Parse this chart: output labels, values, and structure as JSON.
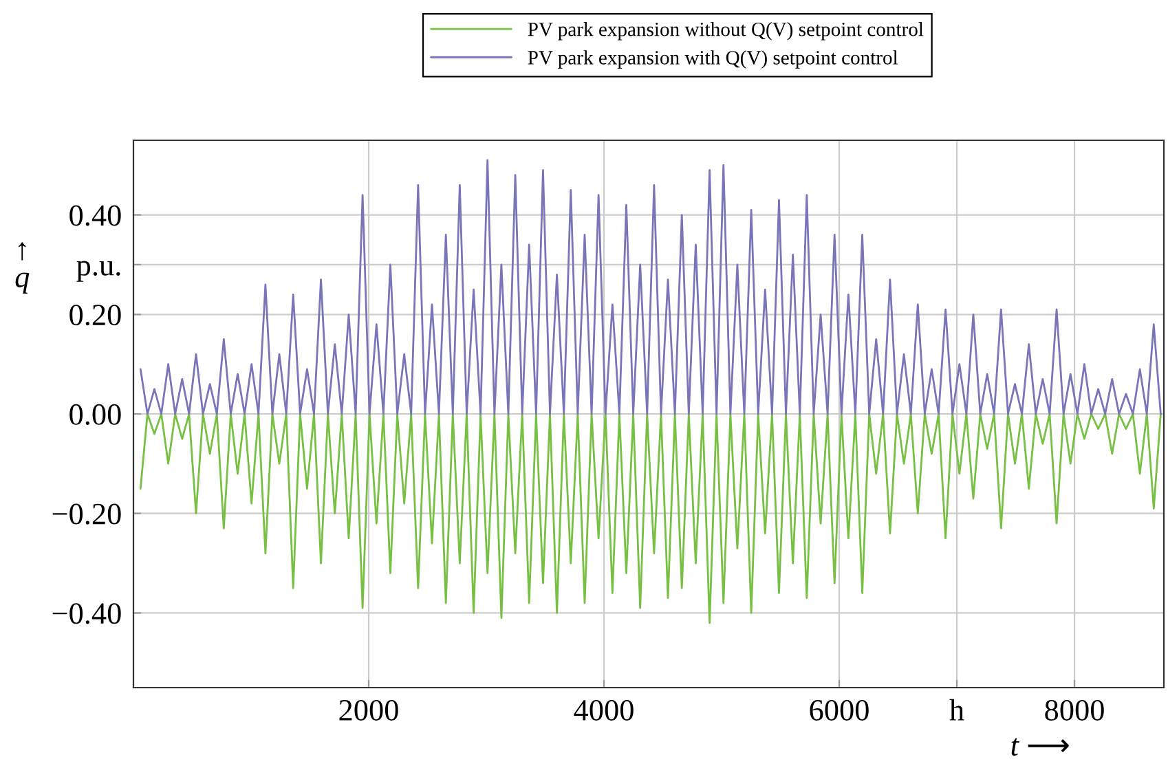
{
  "chart_data": {
    "type": "line",
    "xlabel": "t ⟶",
    "ylabel": "↑\nq",
    "x": [
      60,
      119,
      178,
      237,
      296,
      355,
      414,
      473,
      532,
      591,
      650,
      709,
      768,
      827,
      886,
      945,
      1004,
      1063,
      1122,
      1181,
      1240,
      1299,
      1358,
      1417,
      1476,
      1535,
      1594,
      1653,
      1712,
      1771,
      1830,
      1889,
      1948,
      2007,
      2066,
      2125,
      2184,
      2243,
      2302,
      2361,
      2420,
      2479,
      2538,
      2597,
      2656,
      2715,
      2774,
      2833,
      2892,
      2951,
      3010,
      3069,
      3128,
      3187,
      3246,
      3305,
      3364,
      3423,
      3482,
      3541,
      3600,
      3659,
      3718,
      3777,
      3836,
      3895,
      3954,
      4013,
      4072,
      4131,
      4190,
      4249,
      4308,
      4367,
      4426,
      4485,
      4544,
      4603,
      4662,
      4721,
      4780,
      4839,
      4898,
      4957,
      5016,
      5075,
      5134,
      5193,
      5252,
      5311,
      5370,
      5429,
      5488,
      5547,
      5606,
      5665,
      5724,
      5783,
      5842,
      5901,
      5960,
      6019,
      6078,
      6137,
      6196,
      6255,
      6314,
      6373,
      6432,
      6491,
      6550,
      6609,
      6668,
      6727,
      6786,
      6845,
      6904,
      6963,
      7022,
      7081,
      7140,
      7199,
      7258,
      7317,
      7376,
      7435,
      7494,
      7553,
      7612,
      7671,
      7730,
      7789,
      7848,
      7907,
      7966,
      8025,
      8084,
      8143,
      8202,
      8261,
      8320,
      8379,
      8438,
      8497,
      8556,
      8615,
      8674,
      8733
    ],
    "series": [
      {
        "name": "PV park expansion without Q(V) setpoint control",
        "color": "#77c043",
        "values": [
          -0.15,
          0,
          -0.04,
          0,
          -0.1,
          0,
          -0.05,
          0,
          -0.2,
          0,
          -0.08,
          0,
          -0.23,
          0,
          -0.12,
          0,
          -0.18,
          0,
          -0.28,
          0,
          -0.1,
          0,
          -0.35,
          0,
          -0.15,
          0,
          -0.3,
          0,
          -0.2,
          0,
          -0.25,
          0,
          -0.39,
          0,
          -0.22,
          0,
          -0.32,
          0,
          -0.18,
          0,
          -0.35,
          0,
          -0.26,
          0,
          -0.38,
          0,
          -0.3,
          0,
          -0.4,
          0,
          -0.32,
          0,
          -0.41,
          0,
          -0.28,
          0,
          -0.38,
          0,
          -0.34,
          0,
          -0.4,
          0,
          -0.3,
          0,
          -0.38,
          0,
          -0.25,
          0,
          -0.36,
          0,
          -0.32,
          0,
          -0.39,
          0,
          -0.28,
          0,
          -0.37,
          0,
          -0.35,
          0,
          -0.3,
          0,
          -0.42,
          0,
          -0.38,
          0,
          -0.27,
          0,
          -0.4,
          0,
          -0.24,
          0,
          -0.36,
          0,
          -0.3,
          0,
          -0.37,
          0,
          -0.22,
          0,
          -0.34,
          0,
          -0.25,
          0,
          -0.36,
          0,
          -0.12,
          0,
          -0.24,
          0,
          -0.1,
          0,
          -0.2,
          0,
          -0.08,
          0,
          -0.25,
          0,
          -0.12,
          0,
          -0.17,
          0,
          -0.07,
          0,
          -0.23,
          0,
          -0.1,
          0,
          -0.15,
          0,
          -0.06,
          0,
          -0.22,
          0,
          -0.1,
          0,
          -0.05,
          0,
          -0.03,
          0,
          -0.08,
          0,
          -0.03,
          0,
          -0.12,
          0,
          -0.19,
          0
        ]
      },
      {
        "name": "PV park expansion with Q(V) setpoint control",
        "color": "#7a74b8",
        "values": [
          0.09,
          0,
          0.05,
          0,
          0.1,
          0,
          0.07,
          0,
          0.12,
          0,
          0.06,
          0,
          0.15,
          0,
          0.08,
          0,
          0.1,
          0,
          0.26,
          0,
          0.12,
          0,
          0.24,
          0,
          0.09,
          0,
          0.27,
          0,
          0.14,
          0,
          0.2,
          0,
          0.44,
          0,
          0.18,
          0,
          0.3,
          0,
          0.12,
          0,
          0.46,
          0,
          0.22,
          0,
          0.36,
          0,
          0.46,
          0,
          0.25,
          0,
          0.51,
          0,
          0.3,
          0,
          0.48,
          0,
          0.34,
          0,
          0.49,
          0,
          0.28,
          0,
          0.45,
          0,
          0.36,
          0,
          0.44,
          0,
          0.22,
          0,
          0.42,
          0,
          0.3,
          0,
          0.46,
          0,
          0.27,
          0,
          0.4,
          0,
          0.34,
          0,
          0.49,
          0,
          0.5,
          0,
          0.3,
          0,
          0.41,
          0,
          0.25,
          0,
          0.43,
          0,
          0.32,
          0,
          0.44,
          0,
          0.2,
          0,
          0.36,
          0,
          0.24,
          0,
          0.36,
          0,
          0.15,
          0,
          0.27,
          0,
          0.12,
          0,
          0.22,
          0,
          0.09,
          0,
          0.21,
          0,
          0.1,
          0,
          0.2,
          0,
          0.08,
          0,
          0.21,
          0,
          0.06,
          0,
          0.14,
          0,
          0.07,
          0,
          0.21,
          0,
          0.08,
          0,
          0.1,
          0,
          0.05,
          0,
          0.07,
          0,
          0.04,
          0,
          0.09,
          0,
          0.18,
          0
        ]
      }
    ],
    "xlim": [
      0,
      8760
    ],
    "xticks": [
      2000,
      4000,
      6000,
      {
        "value": 7000,
        "label": "h"
      },
      8000
    ],
    "ylim": [
      -0.55,
      0.55
    ],
    "yticks": [
      {
        "value": -0.4,
        "label": "−0.40"
      },
      {
        "value": -0.2,
        "label": "−0.20"
      },
      {
        "value": 0,
        "label": "0.00"
      },
      {
        "value": 0.2,
        "label": "0.20"
      },
      {
        "value": 0.3,
        "label": "p.u."
      },
      {
        "value": 0.4,
        "label": "0.40"
      }
    ],
    "grid": true,
    "legend": "top",
    "line_style": "solid",
    "marker": "none"
  }
}
